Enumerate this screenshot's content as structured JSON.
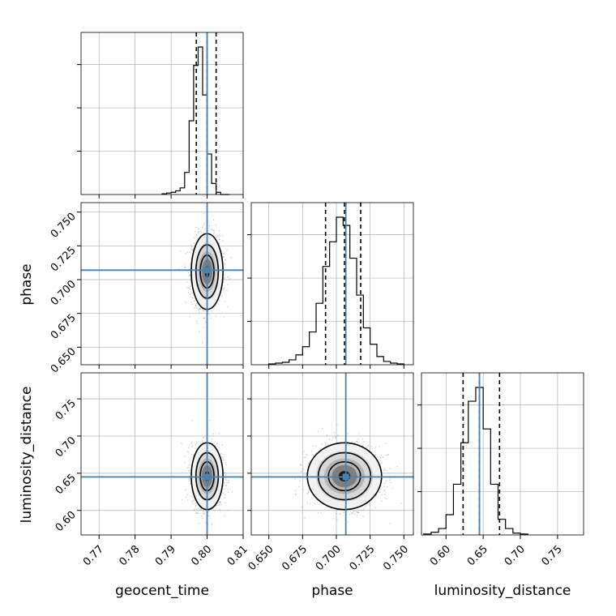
{
  "chart_data": {
    "type": "corner",
    "parameters": [
      "geocent_time",
      "phase",
      "luminosity_distance"
    ],
    "truths": [
      0.8,
      0.707,
      0.645
    ],
    "quantiles_16_50_84": [
      [
        0.797,
        0.8,
        0.8025
      ],
      [
        0.692,
        0.706,
        0.718
      ],
      [
        0.623,
        0.645,
        0.672
      ]
    ],
    "ranges": [
      [
        0.765,
        0.81
      ],
      [
        0.637,
        0.757
      ],
      [
        0.567,
        0.785
      ]
    ],
    "ticks": [
      [
        "0.77",
        "0.78",
        "0.79",
        "0.80",
        "0.81"
      ],
      [
        "0.650",
        "0.675",
        "0.700",
        "0.725",
        "0.750"
      ],
      [
        "0.60",
        "0.65",
        "0.70",
        "0.75"
      ]
    ],
    "tick_values": [
      [
        0.77,
        0.78,
        0.79,
        0.8,
        0.81
      ],
      [
        0.65,
        0.675,
        0.7,
        0.725,
        0.75
      ],
      [
        0.6,
        0.65,
        0.7,
        0.75
      ]
    ],
    "hist_geocent_time": {
      "bin_edges_start": 0.7875,
      "bin_width": 0.00125,
      "counts": [
        1,
        2,
        3,
        5,
        9,
        30,
        100,
        175,
        200,
        135,
        55,
        15,
        3,
        0,
        0
      ]
    },
    "hist_phase": {
      "bin_edges_start": 0.65,
      "bin_width": 0.005,
      "counts": [
        1,
        2,
        3,
        6,
        12,
        22,
        40,
        75,
        120,
        150,
        180,
        170,
        130,
        85,
        45,
        25,
        10,
        4,
        2,
        1
      ]
    },
    "hist_luminosity_distance": {
      "bin_edges_start": 0.57,
      "bin_width": 0.01,
      "counts": [
        1,
        3,
        7,
        22,
        55,
        100,
        145,
        160,
        115,
        55,
        17,
        7,
        2,
        1
      ]
    },
    "colors": {
      "truth": "#4682b4",
      "hist": "#000000",
      "grid": "#b0b0b0",
      "points": "#888888"
    },
    "grid": true
  }
}
